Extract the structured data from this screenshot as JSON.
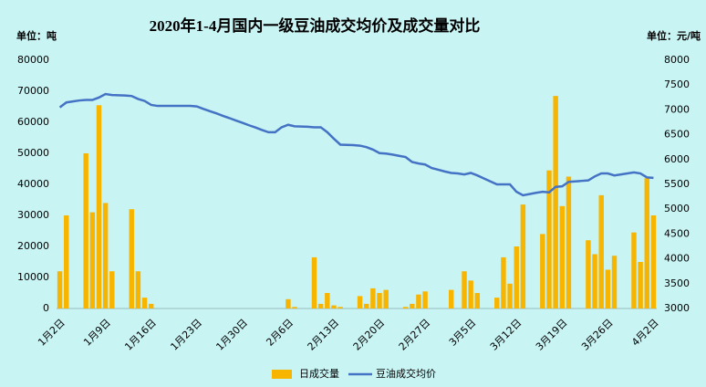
{
  "chart_data": {
    "type": "bar-line",
    "title": "2020年1-4月国内一级豆油成交均价及成交量对比",
    "y_label": "单位：吨",
    "y2_label": "单位：元/吨",
    "categories": [
      "1月2日",
      null,
      null,
      null,
      null,
      null,
      null,
      "1月9日",
      null,
      null,
      null,
      null,
      null,
      null,
      "1月16日",
      null,
      null,
      null,
      null,
      null,
      null,
      "1月23日",
      null,
      null,
      null,
      null,
      null,
      null,
      "1月30日",
      null,
      null,
      null,
      null,
      null,
      null,
      "2月6日",
      null,
      null,
      null,
      null,
      null,
      null,
      "2月13日",
      null,
      null,
      null,
      null,
      null,
      null,
      "2月20日",
      null,
      null,
      null,
      null,
      null,
      null,
      "2月27日",
      null,
      null,
      null,
      null,
      null,
      null,
      "3月5日",
      null,
      null,
      null,
      null,
      null,
      null,
      "3月12日",
      null,
      null,
      null,
      null,
      null,
      null,
      "3月19日",
      null,
      null,
      null,
      null,
      null,
      null,
      "3月26日",
      null,
      null,
      null,
      null,
      null,
      null,
      "4月2日"
    ],
    "series": [
      {
        "name": "日成交量",
        "type": "bar",
        "color": "#f7b500",
        "values": [
          12000,
          30000,
          null,
          null,
          50000,
          31000,
          65500,
          34000,
          12000,
          null,
          null,
          32000,
          12000,
          3500,
          1500,
          0,
          null,
          null,
          0,
          0,
          0,
          0,
          null,
          null,
          null,
          null,
          null,
          null,
          null,
          null,
          null,
          null,
          0,
          0,
          0,
          3000,
          500,
          null,
          null,
          16500,
          1500,
          5000,
          1000,
          500,
          null,
          null,
          4000,
          1500,
          6500,
          5000,
          6000,
          null,
          null,
          500,
          1500,
          4500,
          5500,
          0,
          null,
          null,
          6000,
          0,
          12000,
          9000,
          5000,
          null,
          null,
          3500,
          16500,
          8000,
          20000,
          33500,
          null,
          null,
          24000,
          44500,
          68500,
          33000,
          42500,
          null,
          null,
          22000,
          17500,
          36500,
          12500,
          17000,
          null,
          null,
          24500,
          15000,
          42000,
          30000
        ]
      },
      {
        "name": "豆油成交均价",
        "type": "line",
        "axis": "y2",
        "color": "#4472c4",
        "values": [
          7050,
          7150,
          7170,
          7190,
          7200,
          7200,
          7250,
          7320,
          7300,
          7295,
          7290,
          7280,
          7220,
          7180,
          7100,
          7080,
          7080,
          7080,
          7080,
          7080,
          7080,
          7070,
          7020,
          6975,
          6930,
          6880,
          6835,
          6785,
          6740,
          6690,
          6645,
          6595,
          6550,
          6550,
          6650,
          6700,
          6670,
          6665,
          6660,
          6650,
          6650,
          6550,
          6420,
          6300,
          6295,
          6290,
          6280,
          6250,
          6200,
          6130,
          6120,
          6100,
          6075,
          6050,
          5950,
          5920,
          5900,
          5830,
          5795,
          5760,
          5730,
          5720,
          5700,
          5730,
          5680,
          5620,
          5560,
          5500,
          5500,
          5500,
          5350,
          5280,
          5305,
          5330,
          5350,
          5340,
          5450,
          5460,
          5550,
          5560,
          5570,
          5580,
          5660,
          5720,
          5720,
          5680,
          5700,
          5720,
          5740,
          5720,
          5640,
          5630
        ]
      }
    ],
    "ylim": [
      0,
      80000
    ],
    "yticks": [
      0,
      10000,
      20000,
      30000,
      40000,
      50000,
      60000,
      70000,
      80000
    ],
    "y2lim": [
      3000,
      8000
    ],
    "y2ticks": [
      3000,
      3500,
      4000,
      4500,
      5000,
      5500,
      6000,
      6500,
      7000,
      7500,
      8000
    ],
    "grid": false,
    "legend": "bottom"
  }
}
